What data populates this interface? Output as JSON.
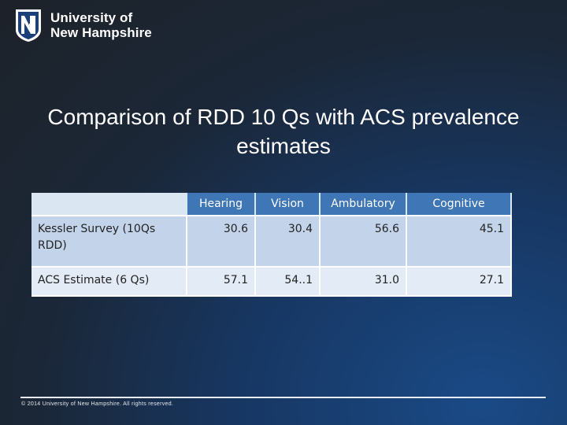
{
  "logo": {
    "line1": "University of",
    "line2": "New Hampshire",
    "mark_text": "NH",
    "mark_color": "#ffffff",
    "mark_accent": "#1b3f7a"
  },
  "title": "Comparison of RDD 10 Qs with ACS prevalence estimates",
  "table": {
    "headers": [
      "Hearing",
      "Vision",
      "Ambulatory",
      "Cognitive"
    ],
    "header_color": "#3e76b6",
    "rows": [
      {
        "label": "Kessler Survey (10Qs RDD)",
        "values": [
          "30.6",
          "30.4",
          "56.6",
          "45.1"
        ]
      },
      {
        "label": "ACS Estimate (6 Qs)",
        "values": [
          "57.1",
          "54..1",
          "31.0",
          "27.1"
        ]
      }
    ]
  },
  "footer": "© 2014 University of New Hampshire. All rights reserved."
}
